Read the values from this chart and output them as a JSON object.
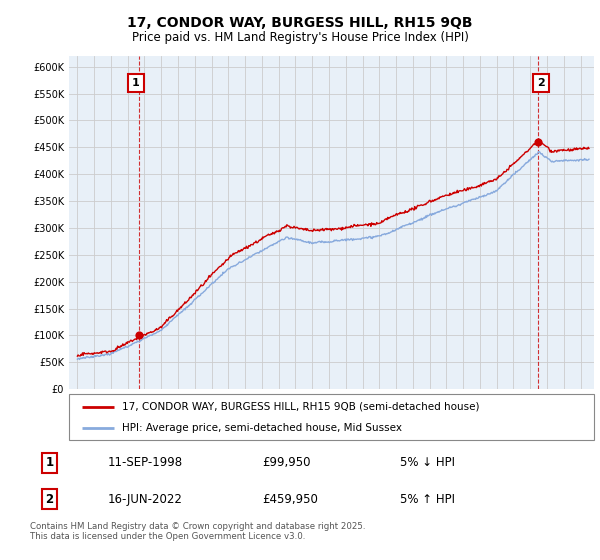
{
  "title": "17, CONDOR WAY, BURGESS HILL, RH15 9QB",
  "subtitle": "Price paid vs. HM Land Registry's House Price Index (HPI)",
  "legend_line1": "17, CONDOR WAY, BURGESS HILL, RH15 9QB (semi-detached house)",
  "legend_line2": "HPI: Average price, semi-detached house, Mid Sussex",
  "annotation1_date": "11-SEP-1998",
  "annotation1_price": "£99,950",
  "annotation1_hpi": "5% ↓ HPI",
  "annotation2_date": "16-JUN-2022",
  "annotation2_price": "£459,950",
  "annotation2_hpi": "5% ↑ HPI",
  "footnote": "Contains HM Land Registry data © Crown copyright and database right 2025.\nThis data is licensed under the Open Government Licence v3.0.",
  "sale_color": "#cc0000",
  "hpi_color": "#88aadd",
  "background_color": "#ffffff",
  "grid_color": "#cccccc",
  "chart_bg": "#e8f0f8",
  "ylim": [
    0,
    620000
  ],
  "yticks": [
    0,
    50000,
    100000,
    150000,
    200000,
    250000,
    300000,
    350000,
    400000,
    450000,
    500000,
    550000,
    600000
  ],
  "sale1_year": 1998.69,
  "sale1_price": 99950,
  "sale2_year": 2022.45,
  "sale2_price": 459950
}
